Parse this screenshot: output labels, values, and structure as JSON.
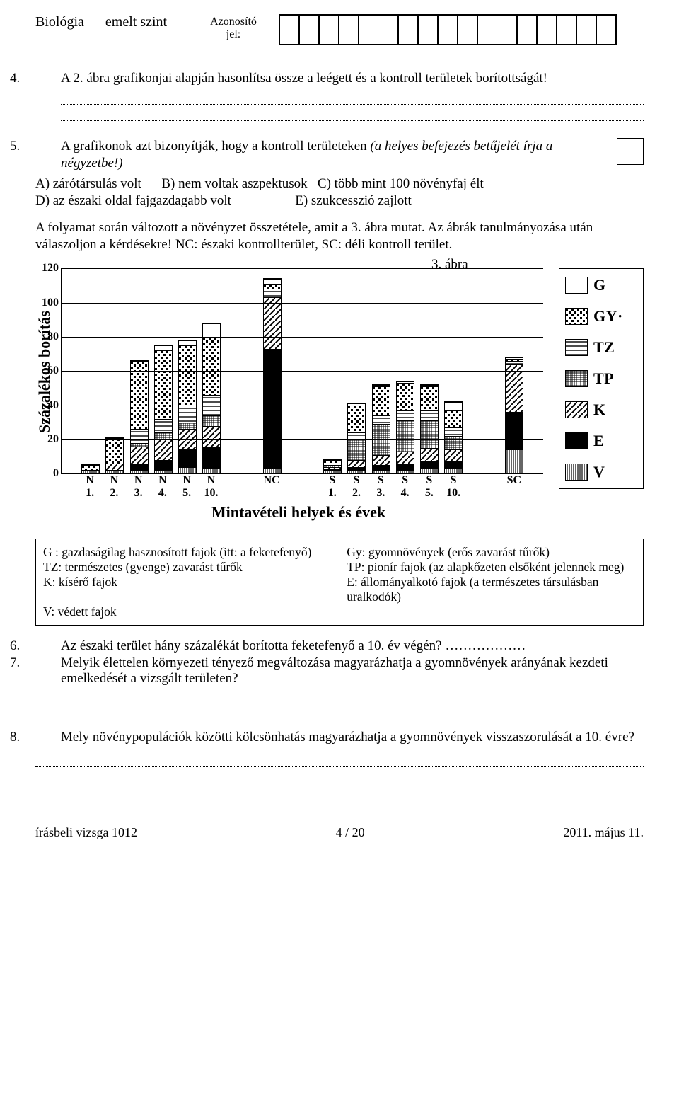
{
  "header": {
    "subject": "Biológia — emelt szint",
    "id_label_1": "Azonosító",
    "id_label_2": "jel:",
    "id_cells": 15
  },
  "q4": {
    "num": "4.",
    "text": "A 2. ábra grafikonjai alapján hasonlítsa össze a leégett és a kontroll területek borított­ságát!"
  },
  "q5": {
    "num": "5.",
    "intro": "A grafikonok azt bizonyítják, hogy a kontroll területeken ",
    "italic": "(a helyes befejezés betűjelét írja a négyzetbe!)",
    "optA": "A) zárótársulás volt",
    "optB": "B) nem voltak aszpektusok",
    "optC": "C) több mint 100 növényfaj élt",
    "optD": "D) az északi oldal fajgazdagabb volt",
    "optE": "E) szukcesszió zajlott"
  },
  "para": "A folyamat során változott a növényzet összetétele, amit a 3. ábra mutat. Az ábrák tanulmányozása után válaszoljon a kérdésekre! NC: északi kontrollterület, SC: déli kontroll terület.",
  "fig_label": "3. ábra",
  "chart": {
    "y_label": "Százalékos borítás",
    "x_label": "Mintavételi helyek és évek",
    "y_max": 120,
    "y_ticks": [
      0,
      20,
      40,
      60,
      80,
      100,
      120
    ],
    "categories": [
      "N\n1.",
      "N\n2.",
      "N\n3.",
      "N\n4.",
      "N\n5.",
      "N\n10.",
      "NC",
      "S\n1.",
      "S\n2.",
      "S\n3.",
      "S\n4.",
      "S\n5.",
      "S\n10.",
      "SC"
    ],
    "legend": [
      {
        "code": "G",
        "label": "G",
        "class": "pat-G"
      },
      {
        "code": "GY",
        "label": "GY",
        "class": "pat-GY",
        "suffix": "·"
      },
      {
        "code": "TZ",
        "label": "TZ",
        "class": "pat-TZ"
      },
      {
        "code": "TP",
        "label": "TP",
        "class": "pat-TP"
      },
      {
        "code": "K",
        "label": "K",
        "class": "pat-K"
      },
      {
        "code": "E",
        "label": "E",
        "class": "pat-E"
      },
      {
        "code": "V",
        "label": "V",
        "class": "pat-V"
      }
    ],
    "series_order": [
      "V",
      "E",
      "K",
      "TP",
      "TZ",
      "GY",
      "G"
    ],
    "bars": [
      {
        "V": 2,
        "E": 0,
        "K": 0,
        "TP": 0,
        "TZ": 0,
        "GY": 3,
        "G": 0
      },
      {
        "V": 2,
        "E": 0,
        "K": 4,
        "TP": 0,
        "TZ": 0,
        "GY": 15,
        "G": 0
      },
      {
        "V": 2,
        "E": 4,
        "K": 10,
        "TP": 2,
        "TZ": 8,
        "GY": 40,
        "G": 0
      },
      {
        "V": 2,
        "E": 6,
        "K": 12,
        "TP": 4,
        "TZ": 8,
        "GY": 40,
        "G": 3
      },
      {
        "V": 4,
        "E": 10,
        "K": 12,
        "TP": 4,
        "TZ": 10,
        "GY": 35,
        "G": 3
      },
      {
        "V": 3,
        "E": 13,
        "K": 12,
        "TP": 6,
        "TZ": 12,
        "GY": 34,
        "G": 8
      },
      {
        "V": 3,
        "E": 70,
        "K": 30,
        "TP": 0,
        "TZ": 5,
        "GY": 3,
        "G": 3
      },
      {
        "V": 2,
        "E": 1,
        "K": 1,
        "TP": 1,
        "TZ": 1,
        "GY": 2,
        "G": 0
      },
      {
        "V": 2,
        "E": 2,
        "K": 4,
        "TP": 12,
        "TZ": 4,
        "GY": 16,
        "G": 1
      },
      {
        "V": 2,
        "E": 3,
        "K": 6,
        "TP": 18,
        "TZ": 5,
        "GY": 17,
        "G": 1
      },
      {
        "V": 2,
        "E": 4,
        "K": 7,
        "TP": 18,
        "TZ": 6,
        "GY": 16,
        "G": 1
      },
      {
        "V": 3,
        "E": 4,
        "K": 8,
        "TP": 16,
        "TZ": 6,
        "GY": 14,
        "G": 1
      },
      {
        "V": 3,
        "E": 4,
        "K": 7,
        "TP": 8,
        "TZ": 5,
        "GY": 10,
        "G": 5
      },
      {
        "V": 14,
        "E": 22,
        "K": 28,
        "TP": 0,
        "TZ": 2,
        "GY": 1,
        "G": 1
      }
    ]
  },
  "key_box": {
    "l1a": "G : gazdaságilag hasznosított fajok (itt: a feketefenyő)",
    "l1b": "Gy: gyomnövények (erős zavarást tűrők)",
    "l2a": "TZ: természetes (gyenge) zavarást tűrők",
    "l2b": "TP: pionír fajok (az alapkőzeten elsőként jelennek meg)",
    "l3a": "K: kísérő fajok",
    "l3b": "E: állományalkotó fajok (a természetes társulásban uralkodók)",
    "l4a": "V: védett fajok"
  },
  "q6": {
    "num": "6.",
    "text": "Az északi terület hány százalékát borította feketefenyő a 10. év végén? ………………"
  },
  "q7": {
    "num": "7.",
    "text": "Melyik élettelen környezeti tényező megváltozása magyarázhatja a gyomnövények arányának kezdeti emelkedését a vizsgált területen?"
  },
  "q8": {
    "num": "8.",
    "text": "Mely növénypopulációk közötti kölcsönhatás magyarázhatja a gyomnövények vissza­szorulását a 10. évre?"
  },
  "footer": {
    "left": "írásbeli vizsga 1012",
    "mid": "4 / 20",
    "right": "2011. május 11."
  }
}
